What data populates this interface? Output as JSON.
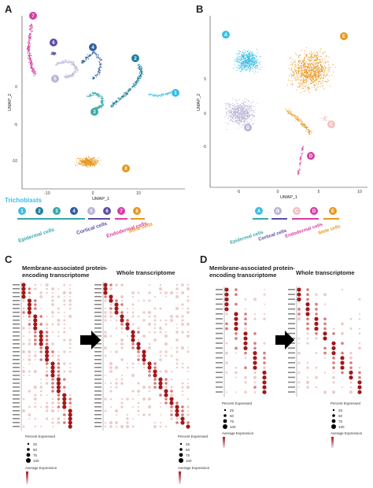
{
  "panels": {
    "A": {
      "letter": "A",
      "xlabel": "UMAP_1",
      "ylabel": "UMAP_2",
      "yticks": [
        "0",
        "-5",
        "-10"
      ],
      "xticks": [
        "-10",
        "0",
        "10"
      ]
    },
    "B": {
      "letter": "B",
      "xlabel": "UMAP_1",
      "ylabel": "UMAP_2",
      "yticks": [
        "5",
        "0",
        "-5"
      ],
      "xticks": [
        "-5",
        "0",
        "5",
        "10"
      ]
    },
    "C": {
      "letter": "C",
      "left_title": "Membrane-associated protein-encoding transcriptome",
      "right_title": "Whole transcriptome"
    },
    "D": {
      "letter": "D",
      "left_title": "Membrane-associated protein-encoding transcriptome",
      "right_title": "Whole transcriptome"
    }
  },
  "clusters_A": [
    {
      "label": "1",
      "color": "#3bbde4"
    },
    {
      "label": "2",
      "color": "#1f7f9a"
    },
    {
      "label": "3",
      "color": "#3aa8a8"
    },
    {
      "label": "4",
      "color": "#2f5f9e"
    },
    {
      "label": "5",
      "color": "#b8b4d4"
    },
    {
      "label": "6",
      "color": "#5a4ea6"
    },
    {
      "label": "7",
      "color": "#d63ea2"
    },
    {
      "label": "8",
      "color": "#e8961e"
    }
  ],
  "clusters_B": [
    {
      "label": "A",
      "color": "#3bbde4"
    },
    {
      "label": "B",
      "color": "#b8b4d4"
    },
    {
      "label": "C",
      "color": "#f2c2c2"
    },
    {
      "label": "D",
      "color": "#d63ea2"
    },
    {
      "label": "E",
      "color": "#e8961e"
    }
  ],
  "legend_A": {
    "trichoblasts": "Trichoblasts",
    "groups": [
      {
        "name": "Epidermal cells",
        "color": "#3aa8a8"
      },
      {
        "name": "Cortical cells",
        "color": "#5a4ea6"
      },
      {
        "name": "Endodermal cells",
        "color": "#d63ea2"
      },
      {
        "name": "Stele cells",
        "color": "#e8961e"
      }
    ]
  },
  "legend_B": {
    "groups": [
      {
        "name": "Epidermal cells",
        "color": "#3aa8a8"
      },
      {
        "name": "Cortical cells",
        "color": "#5a4ea6"
      },
      {
        "name": "Endodermal cells",
        "color": "#d63ea2"
      },
      {
        "name": "Stele cells",
        "color": "#e8961e"
      }
    ]
  },
  "dot_legend": {
    "percent_title": "Percent Expressed",
    "percent_values": [
      "25",
      "50",
      "75",
      "100"
    ],
    "avg_title": "Average Expression"
  },
  "dot_legend_D": {
    "percent_title": "Percent Expressed",
    "percent_values": [
      "25",
      "50",
      "75",
      "100"
    ],
    "avg_title": "Average Expression"
  },
  "colors": {
    "dot_dark": "#a3181a",
    "dot_light": "#f3d4d4",
    "arrow": "#000000"
  }
}
